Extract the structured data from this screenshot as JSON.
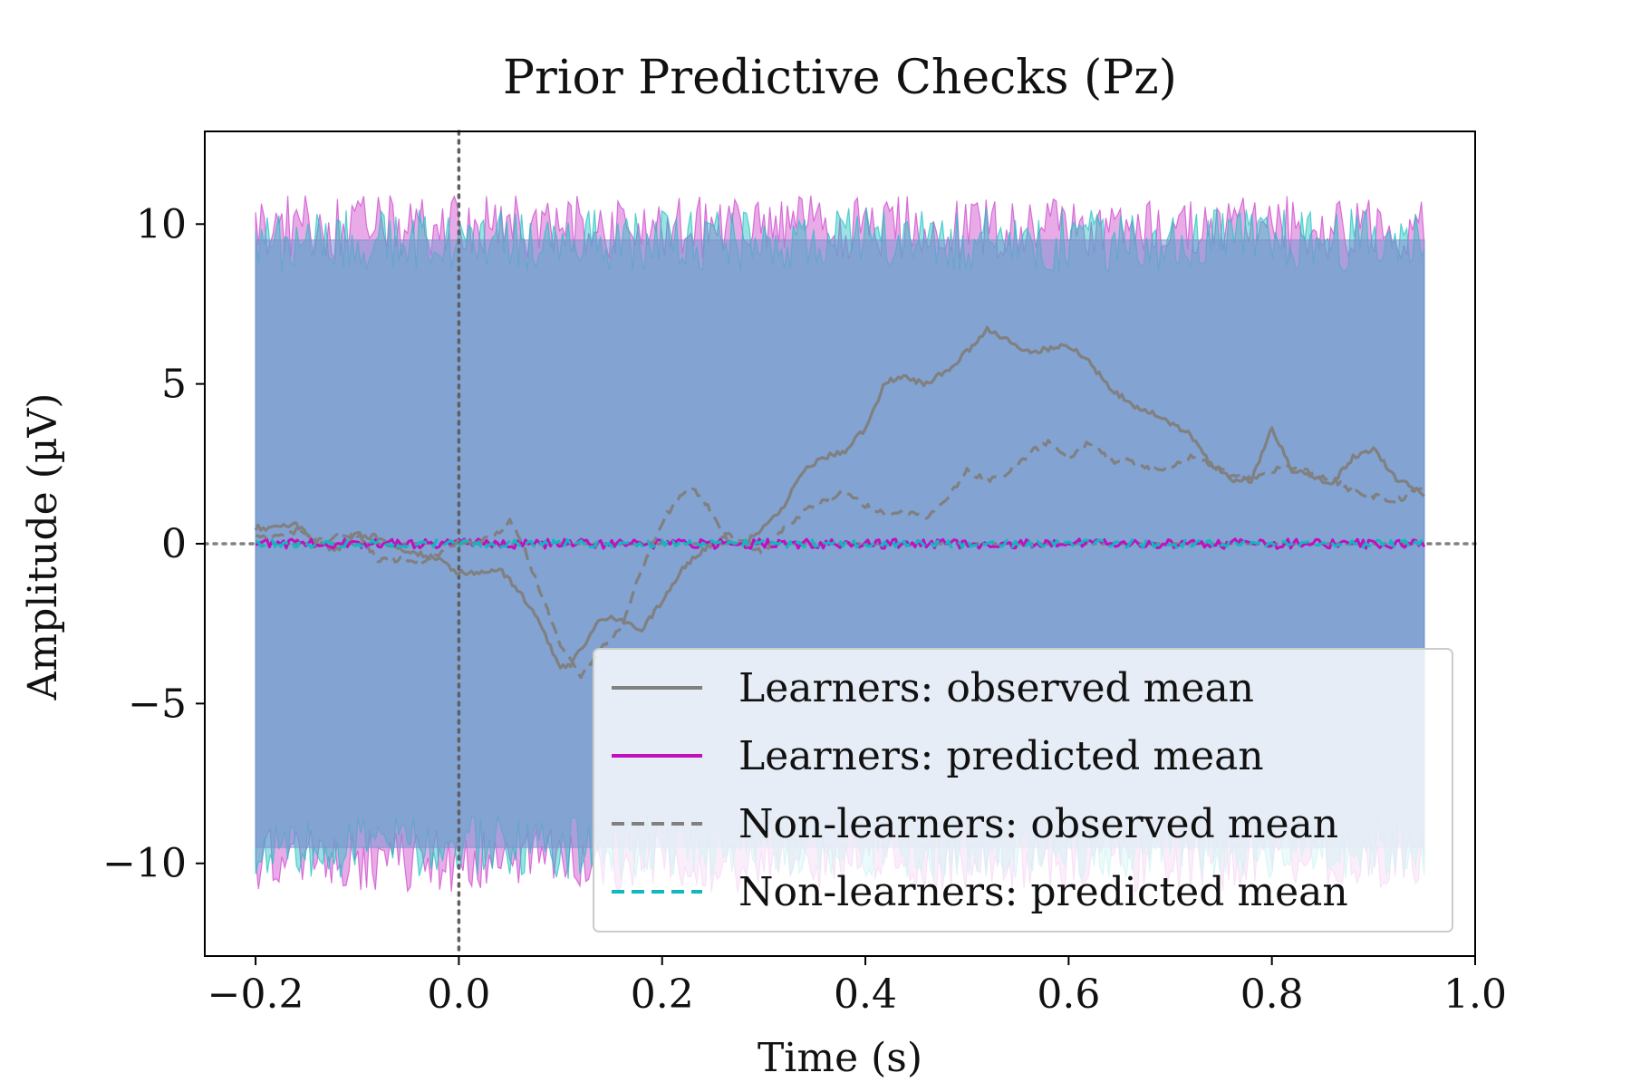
{
  "chart_data": {
    "type": "line",
    "title": "Prior Predictive Checks (Pz)",
    "xlabel": "Time (s)",
    "ylabel": "Amplitude (µV)",
    "xlim": [
      -0.25,
      1.0
    ],
    "ylim": [
      -12.9,
      12.9
    ],
    "x_ticks": [
      -0.2,
      0.0,
      0.2,
      0.4,
      0.6,
      0.8,
      1.0
    ],
    "x_tick_labels": [
      "−0.2",
      "0.0",
      "0.2",
      "0.4",
      "0.6",
      "0.8",
      "1.0"
    ],
    "y_ticks": [
      -10,
      -5,
      0,
      5,
      10
    ],
    "y_tick_labels": [
      "−10",
      "−5",
      "0",
      "5",
      "10"
    ],
    "grid": false,
    "legend_position": "lower-right",
    "reference_lines": [
      {
        "orientation": "horizontal",
        "value": 0,
        "style": "dotted",
        "color": "#808080"
      },
      {
        "orientation": "vertical",
        "value": 0.0,
        "style": "dotted",
        "color": "#606060"
      }
    ],
    "bands": [
      {
        "group": "Learners",
        "color": "#cc44cc",
        "x_range": [
          -0.2,
          0.95
        ],
        "upper_approx": 9.9,
        "lower_approx": -9.9,
        "noise_amplitude": 1.0
      },
      {
        "group": "Non-learners",
        "color": "#20c0c0",
        "x_range": [
          -0.2,
          0.95
        ],
        "upper_approx": 9.5,
        "lower_approx": -9.5,
        "noise_amplitude": 1.0
      },
      {
        "group": "overlap",
        "color": "#7b93cf",
        "x_range": [
          -0.2,
          0.95
        ],
        "upper_approx": 9.5,
        "lower_approx": -9.5
      }
    ],
    "series": [
      {
        "name": "Learners: observed mean",
        "color": "#808080",
        "style": "solid",
        "x": [
          -0.2,
          -0.18,
          -0.16,
          -0.14,
          -0.12,
          -0.1,
          -0.08,
          -0.06,
          -0.04,
          -0.02,
          0.0,
          0.02,
          0.04,
          0.06,
          0.08,
          0.1,
          0.11,
          0.12,
          0.14,
          0.16,
          0.18,
          0.2,
          0.22,
          0.24,
          0.26,
          0.28,
          0.3,
          0.32,
          0.34,
          0.36,
          0.38,
          0.4,
          0.42,
          0.44,
          0.46,
          0.48,
          0.5,
          0.52,
          0.54,
          0.56,
          0.58,
          0.6,
          0.62,
          0.64,
          0.66,
          0.68,
          0.7,
          0.72,
          0.74,
          0.76,
          0.78,
          0.8,
          0.82,
          0.84,
          0.86,
          0.88,
          0.9,
          0.92,
          0.95
        ],
        "y": [
          0.5,
          0.5,
          0.6,
          0.0,
          -0.2,
          0.3,
          0.2,
          -0.2,
          -0.3,
          -0.5,
          -0.9,
          -0.9,
          -0.8,
          -1.5,
          -2.5,
          -3.9,
          -3.8,
          -3.3,
          -2.3,
          -2.4,
          -2.7,
          -1.8,
          -0.8,
          -0.2,
          0.2,
          0.0,
          0.5,
          1.2,
          2.3,
          2.7,
          2.9,
          3.6,
          5.1,
          5.2,
          5.0,
          5.4,
          6.0,
          6.7,
          6.4,
          6.0,
          6.1,
          6.2,
          5.7,
          4.9,
          4.4,
          4.1,
          3.8,
          3.4,
          2.5,
          2.0,
          2.0,
          3.6,
          2.3,
          2.1,
          1.9,
          2.7,
          3.0,
          2.1,
          1.5
        ]
      },
      {
        "name": "Learners: predicted mean",
        "color": "#c010c0",
        "style": "solid",
        "x": [
          -0.2,
          0.95
        ],
        "y": [
          0.0,
          0.0
        ],
        "noise_amplitude": 0.15
      },
      {
        "name": "Non-learners: observed mean",
        "color": "#808080",
        "style": "dashed",
        "x": [
          -0.2,
          -0.18,
          -0.16,
          -0.14,
          -0.12,
          -0.1,
          -0.08,
          -0.06,
          -0.04,
          -0.02,
          0.0,
          0.02,
          0.04,
          0.05,
          0.06,
          0.08,
          0.1,
          0.12,
          0.14,
          0.16,
          0.18,
          0.2,
          0.22,
          0.23,
          0.24,
          0.26,
          0.28,
          0.3,
          0.32,
          0.34,
          0.36,
          0.38,
          0.4,
          0.42,
          0.44,
          0.46,
          0.48,
          0.5,
          0.52,
          0.54,
          0.56,
          0.58,
          0.6,
          0.62,
          0.64,
          0.66,
          0.68,
          0.7,
          0.72,
          0.74,
          0.76,
          0.78,
          0.8,
          0.82,
          0.84,
          0.86,
          0.88,
          0.9,
          0.92,
          0.95
        ],
        "y": [
          0.3,
          0.2,
          0.4,
          0.1,
          0.2,
          0.3,
          -0.5,
          -0.5,
          -0.6,
          -0.4,
          0.1,
          0.0,
          0.4,
          0.7,
          0.2,
          -1.5,
          -3.2,
          -4.1,
          -3.3,
          -2.6,
          -0.8,
          0.7,
          1.6,
          1.7,
          1.4,
          0.4,
          0.0,
          -0.3,
          0.5,
          1.0,
          1.4,
          1.6,
          1.2,
          0.9,
          1.0,
          0.8,
          1.4,
          2.3,
          2.0,
          2.2,
          2.8,
          3.2,
          2.6,
          3.2,
          2.6,
          2.6,
          2.3,
          2.4,
          2.7,
          2.5,
          2.1,
          2.0,
          2.3,
          2.4,
          2.2,
          2.0,
          1.6,
          1.5,
          1.3,
          1.8
        ]
      },
      {
        "name": "Non-learners: predicted mean",
        "color": "#10b8c0",
        "style": "dashed",
        "x": [
          -0.2,
          0.95
        ],
        "y": [
          0.0,
          0.0
        ],
        "noise_amplitude": 0.12
      }
    ]
  }
}
